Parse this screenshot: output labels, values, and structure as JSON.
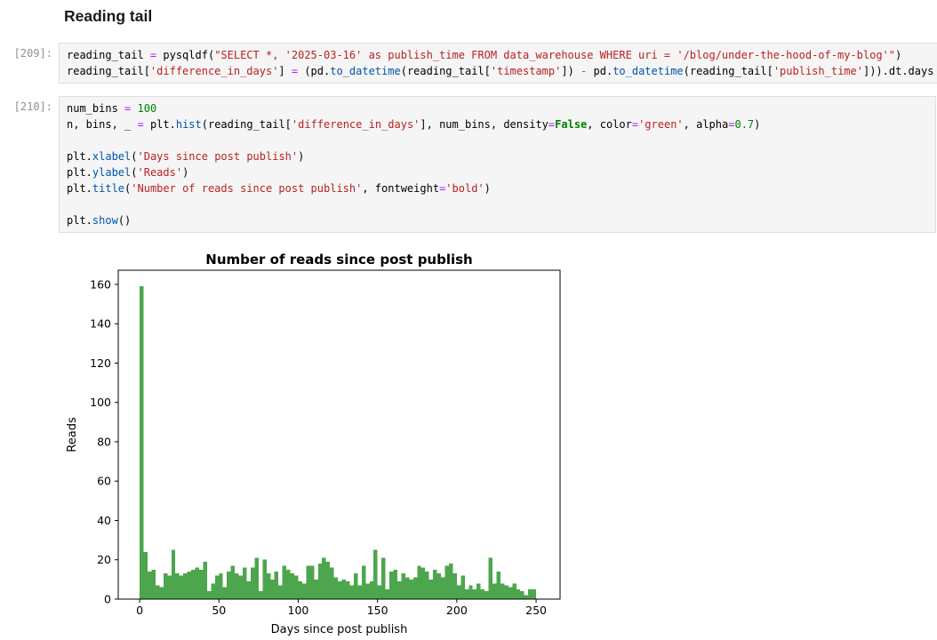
{
  "page": {
    "heading": "Reading tail"
  },
  "cells": [
    {
      "prompt": "[209]:",
      "lines": [
        [
          [
            "p",
            "reading_tail "
          ],
          [
            "o",
            "="
          ],
          [
            "p",
            " pysqldf("
          ],
          [
            "s",
            "\"SELECT *, '2025-03-16' as publish_time FROM data_warehouse WHERE uri = '/blog/under-the-hood-of-my-blog'\""
          ],
          [
            "p",
            ")"
          ]
        ],
        [
          [
            "p",
            "reading_tail["
          ],
          [
            "s",
            "'difference_in_days'"
          ],
          [
            "p",
            "] "
          ],
          [
            "o",
            "="
          ],
          [
            "p",
            " (pd."
          ],
          [
            "f",
            "to_datetime"
          ],
          [
            "p",
            "(reading_tail["
          ],
          [
            "s",
            "'timestamp'"
          ],
          [
            "p",
            "]) "
          ],
          [
            "o",
            "-"
          ],
          [
            "p",
            " pd."
          ],
          [
            "f",
            "to_datetime"
          ],
          [
            "p",
            "(reading_tail["
          ],
          [
            "s",
            "'publish_time'"
          ],
          [
            "p",
            "])).dt.days"
          ]
        ]
      ]
    },
    {
      "prompt": "[210]:",
      "lines": [
        [
          [
            "p",
            "num_bins "
          ],
          [
            "o",
            "="
          ],
          [
            "p",
            " "
          ],
          [
            "n",
            "100"
          ]
        ],
        [
          [
            "p",
            "n, bins, _ "
          ],
          [
            "o",
            "="
          ],
          [
            "p",
            " plt."
          ],
          [
            "f",
            "hist"
          ],
          [
            "p",
            "(reading_tail["
          ],
          [
            "s",
            "'difference_in_days'"
          ],
          [
            "p",
            "], num_bins, density"
          ],
          [
            "o",
            "="
          ],
          [
            "b",
            "False"
          ],
          [
            "p",
            ", color"
          ],
          [
            "o",
            "="
          ],
          [
            "s",
            "'green'"
          ],
          [
            "p",
            ", alpha"
          ],
          [
            "o",
            "="
          ],
          [
            "n",
            "0.7"
          ],
          [
            "p",
            ")"
          ]
        ],
        [],
        [
          [
            "p",
            "plt."
          ],
          [
            "f",
            "xlabel"
          ],
          [
            "p",
            "("
          ],
          [
            "s",
            "'Days since post publish'"
          ],
          [
            "p",
            ")"
          ]
        ],
        [
          [
            "p",
            "plt."
          ],
          [
            "f",
            "ylabel"
          ],
          [
            "p",
            "("
          ],
          [
            "s",
            "'Reads'"
          ],
          [
            "p",
            ")"
          ]
        ],
        [
          [
            "p",
            "plt."
          ],
          [
            "f",
            "title"
          ],
          [
            "p",
            "("
          ],
          [
            "s",
            "'Number of reads since post publish'"
          ],
          [
            "p",
            ", fontweight"
          ],
          [
            "o",
            "="
          ],
          [
            "s",
            "'bold'"
          ],
          [
            "p",
            ")"
          ]
        ],
        [],
        [
          [
            "p",
            "plt."
          ],
          [
            "f",
            "show"
          ],
          [
            "p",
            "()"
          ]
        ]
      ]
    }
  ],
  "chart_data": {
    "type": "bar",
    "subtype": "histogram",
    "title": "Number of reads since post publish",
    "xlabel": "Days since post publish",
    "ylabel": "Reads",
    "bar_color": "#4da64d",
    "bin_start": 0,
    "bin_width": 2.5,
    "values": [
      159,
      24,
      14,
      15,
      7,
      6,
      13,
      12,
      25,
      13,
      12,
      13,
      14,
      15,
      16,
      15,
      19,
      4,
      8,
      12,
      13,
      6,
      14,
      17,
      13,
      12,
      16,
      9,
      16,
      21,
      4,
      20,
      13,
      10,
      14,
      7,
      17,
      15,
      13,
      12,
      9,
      8,
      17,
      17,
      10,
      18,
      21,
      19,
      16,
      11,
      9,
      10,
      9,
      7,
      13,
      7,
      17,
      8,
      9,
      25,
      7,
      21,
      5,
      14,
      15,
      9,
      13,
      11,
      10,
      11,
      17,
      16,
      14,
      10,
      15,
      13,
      11,
      17,
      18,
      13,
      7,
      12,
      5,
      7,
      5,
      8,
      5,
      4,
      21,
      8,
      14,
      8,
      7,
      6,
      8,
      5,
      4,
      2,
      5,
      5
    ],
    "x_ticks": [
      0,
      50,
      100,
      150,
      200,
      250
    ],
    "y_ticks": [
      0,
      20,
      40,
      60,
      80,
      100,
      120,
      140,
      160
    ],
    "xlim": [
      -13.5,
      265.1
    ],
    "ylim": [
      0,
      167.2
    ],
    "grid": false,
    "legend": "none"
  }
}
